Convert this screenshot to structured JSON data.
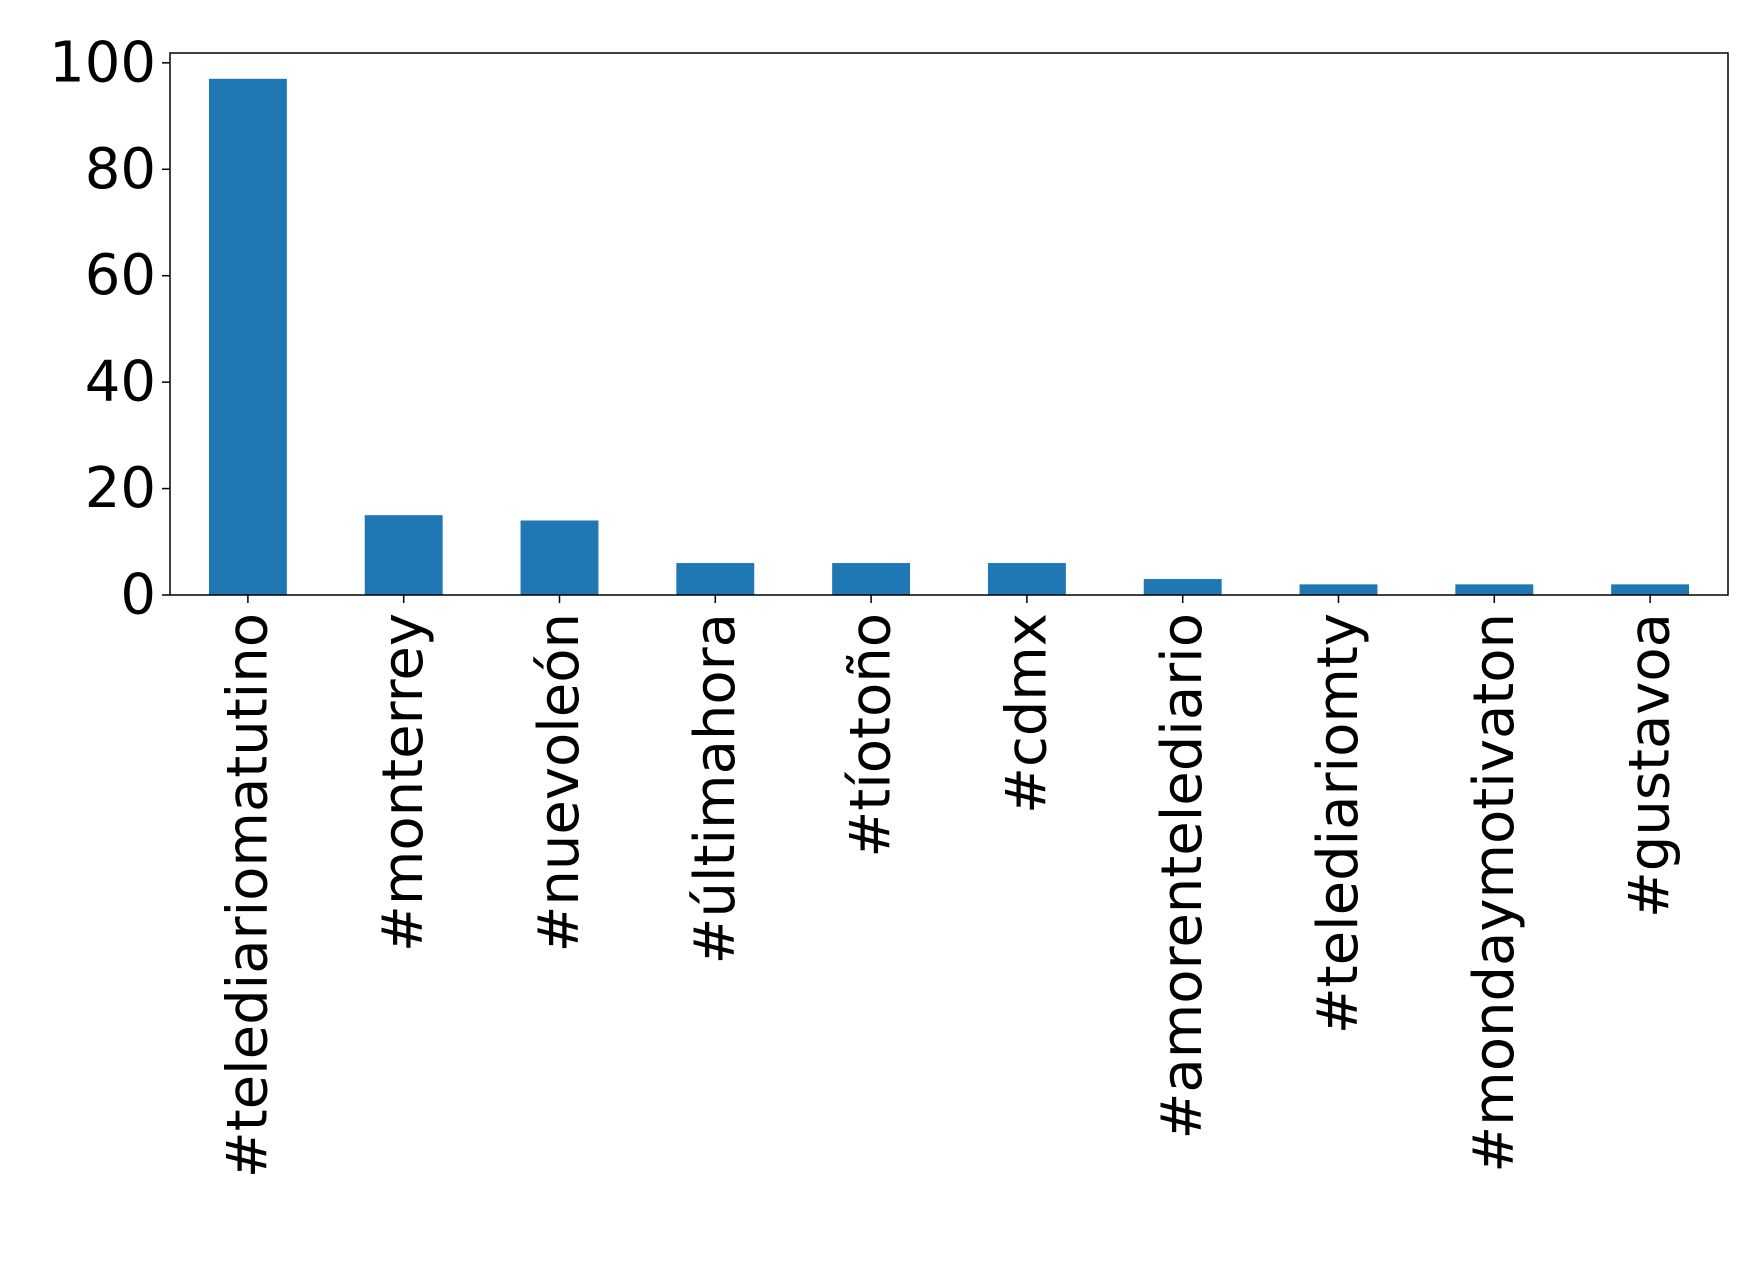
{
  "chart_data": {
    "type": "bar",
    "title": "",
    "xlabel": "",
    "ylabel": "",
    "categories": [
      "#telediariomatutino",
      "#monterrey",
      "#nuevoleón",
      "#últimahora",
      "#tíotoño",
      "#cdmx",
      "#amorentelediario",
      "#telediariomty",
      "#mondaymotivaton",
      "#gustavoa"
    ],
    "values": [
      97,
      15,
      14,
      6,
      6,
      6,
      3,
      2,
      2,
      2
    ],
    "ylim": [
      0,
      101.85
    ],
    "yticks": [
      0,
      20,
      40,
      60,
      80,
      100
    ],
    "ytick_labels": [
      "0",
      "20",
      "40",
      "60",
      "80",
      "100"
    ],
    "bar_color": "#1f77b4",
    "grid": false,
    "legend": "none"
  }
}
